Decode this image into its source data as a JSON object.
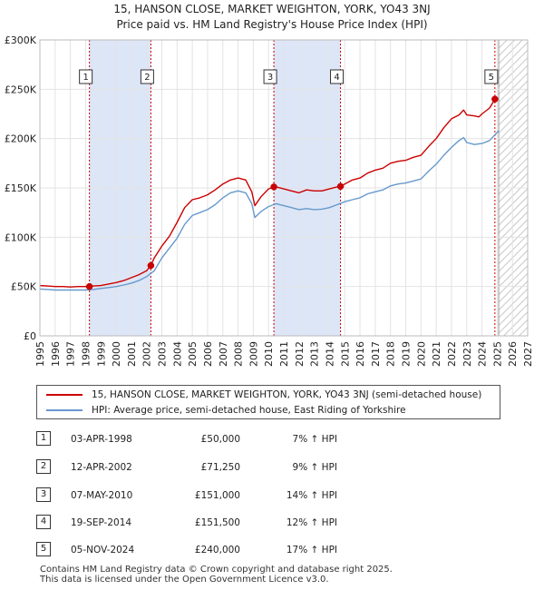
{
  "chart_data": {
    "type": "line",
    "title": "15, HANSON CLOSE, MARKET WEIGHTON, YORK, YO43 3NJ",
    "subtitle": "Price paid vs. HM Land Registry's House Price Index (HPI)",
    "xlim": [
      1995,
      2027
    ],
    "ylim": [
      0,
      300000
    ],
    "x_ticks": [
      "1995",
      "1996",
      "1997",
      "1998",
      "1999",
      "2000",
      "2001",
      "2002",
      "2003",
      "2004",
      "2005",
      "2006",
      "2007",
      "2008",
      "2009",
      "2010",
      "2011",
      "2012",
      "2013",
      "2014",
      "2015",
      "2016",
      "2017",
      "2018",
      "2019",
      "2020",
      "2021",
      "2022",
      "2023",
      "2024",
      "2025",
      "2026",
      "2027"
    ],
    "y_ticks": [
      {
        "value": 0,
        "label": "£0"
      },
      {
        "value": 50000,
        "label": "£50K"
      },
      {
        "value": 100000,
        "label": "£100K"
      },
      {
        "value": 150000,
        "label": "£150K"
      },
      {
        "value": 200000,
        "label": "£200K"
      },
      {
        "value": 250000,
        "label": "£250K"
      },
      {
        "value": 300000,
        "label": "£300K"
      }
    ],
    "series": [
      {
        "name": "15, HANSON CLOSE, MARKET WEIGHTON, YORK, YO43 3NJ (semi-detached house)",
        "color": "#cc0000",
        "x": [
          1995,
          1995.5,
          1996,
          1996.5,
          1997,
          1997.5,
          1998,
          1998.25,
          1998.5,
          1999,
          1999.5,
          2000,
          2000.5,
          2001,
          2001.5,
          2002,
          2002.28,
          2002.5,
          2003,
          2003.5,
          2004,
          2004.5,
          2005,
          2005.5,
          2006,
          2006.5,
          2007,
          2007.5,
          2008,
          2008.5,
          2008.9,
          2009.1,
          2009.5,
          2010,
          2010.35,
          2010.5,
          2011,
          2011.5,
          2012,
          2012.5,
          2013,
          2013.5,
          2014,
          2014.5,
          2014.72,
          2015,
          2015.5,
          2016,
          2016.5,
          2017,
          2017.5,
          2018,
          2018.5,
          2019,
          2019.5,
          2020,
          2020.5,
          2021,
          2021.5,
          2022,
          2022.5,
          2022.8,
          2023,
          2023.5,
          2023.8,
          2024,
          2024.5,
          2024.85
        ],
        "y": [
          51000,
          50500,
          50000,
          50000,
          49500,
          50000,
          50000,
          50000,
          50500,
          51000,
          52500,
          54000,
          56000,
          59000,
          62000,
          66000,
          71250,
          79000,
          91000,
          101000,
          115000,
          130000,
          138000,
          140000,
          143000,
          148000,
          154000,
          158000,
          160000,
          158000,
          146000,
          132000,
          141000,
          149000,
          151000,
          151000,
          149000,
          147000,
          145000,
          148000,
          147000,
          147000,
          149000,
          151000,
          151500,
          154000,
          158000,
          160000,
          165000,
          168000,
          170000,
          175000,
          177000,
          178000,
          181000,
          183000,
          192000,
          200000,
          211000,
          220000,
          224000,
          229000,
          224000,
          223000,
          222000,
          225000,
          231000,
          240000
        ]
      },
      {
        "name": "HPI: Average price, semi-detached house, East Riding of Yorkshire",
        "color": "#6699cc",
        "x": [
          1995,
          1995.5,
          1996,
          1996.5,
          1997,
          1997.5,
          1998,
          1998.5,
          1999,
          1999.5,
          2000,
          2000.5,
          2001,
          2001.5,
          2002,
          2002.5,
          2003,
          2003.5,
          2004,
          2004.5,
          2005,
          2005.5,
          2006,
          2006.5,
          2007,
          2007.5,
          2008,
          2008.5,
          2008.9,
          2009.1,
          2009.5,
          2010,
          2010.5,
          2011,
          2011.5,
          2012,
          2012.5,
          2013,
          2013.5,
          2014,
          2014.5,
          2015,
          2015.5,
          2016,
          2016.5,
          2017,
          2017.5,
          2018,
          2018.5,
          2019,
          2019.5,
          2020,
          2020.5,
          2021,
          2021.5,
          2022,
          2022.5,
          2022.8,
          2023,
          2023.5,
          2024,
          2024.5,
          2025.1
        ],
        "y": [
          47500,
          47000,
          46500,
          46500,
          46500,
          46500,
          46500,
          47000,
          48000,
          49000,
          50000,
          51500,
          53500,
          56000,
          60000,
          66000,
          79000,
          89000,
          99000,
          113000,
          122000,
          125000,
          128000,
          133000,
          140000,
          145000,
          147000,
          145000,
          134000,
          120000,
          126000,
          131000,
          134000,
          132000,
          130000,
          128000,
          129000,
          128000,
          128500,
          130000,
          133000,
          136000,
          138000,
          140000,
          144000,
          146000,
          148000,
          152000,
          154000,
          155000,
          157000,
          159000,
          167000,
          174000,
          183000,
          191000,
          198000,
          201000,
          196000,
          194000,
          195000,
          198000,
          208000
        ]
      }
    ],
    "sales": [
      {
        "num": "1",
        "x": 1998.25,
        "price": 50000
      },
      {
        "num": "2",
        "x": 2002.28,
        "price": 71250
      },
      {
        "num": "3",
        "x": 2010.35,
        "price": 151000
      },
      {
        "num": "4",
        "x": 2014.72,
        "price": 151500
      },
      {
        "num": "5",
        "x": 2024.85,
        "price": 240000
      }
    ],
    "shaded_periods": [
      [
        1998.25,
        2002.28
      ],
      [
        2010.35,
        2014.72
      ]
    ],
    "forecast_start": 2025.1,
    "colors": {
      "price_line": "#cc0000",
      "hpi_line": "#6699cc",
      "shade": "#dde6f7",
      "grid": "#e3e3e3",
      "marker_line": "#cc0000"
    }
  },
  "legend": {
    "price_label": "15, HANSON CLOSE, MARKET WEIGHTON, YORK, YO43 3NJ (semi-detached house)",
    "hpi_label": "HPI: Average price, semi-detached house, East Riding of Yorkshire"
  },
  "transactions": [
    {
      "num": "1",
      "date": "03-APR-1998",
      "price": "£50,000",
      "hpi": "7% ↑ HPI"
    },
    {
      "num": "2",
      "date": "12-APR-2002",
      "price": "£71,250",
      "hpi": "9% ↑ HPI"
    },
    {
      "num": "3",
      "date": "07-MAY-2010",
      "price": "£151,000",
      "hpi": "14% ↑ HPI"
    },
    {
      "num": "4",
      "date": "19-SEP-2014",
      "price": "£151,500",
      "hpi": "12% ↑ HPI"
    },
    {
      "num": "5",
      "date": "05-NOV-2024",
      "price": "£240,000",
      "hpi": "17% ↑ HPI"
    }
  ],
  "footer": {
    "line1": "Contains HM Land Registry data © Crown copyright and database right 2025.",
    "line2": "This data is licensed under the Open Government Licence v3.0."
  }
}
